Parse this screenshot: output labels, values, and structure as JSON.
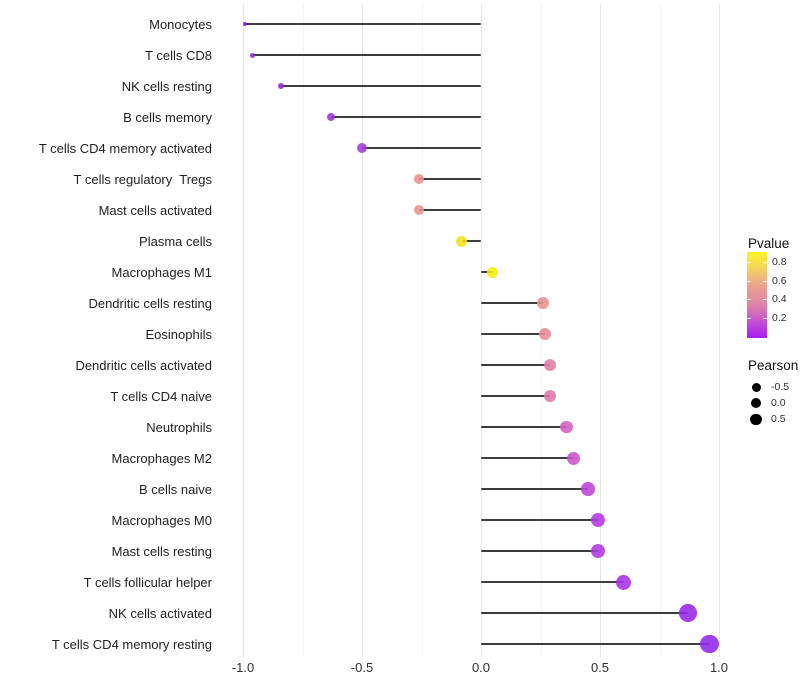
{
  "chart_data": {
    "type": "lollipop",
    "orientation": "horizontal",
    "title": "",
    "xlabel": "",
    "ylabel": "",
    "xlim": [
      -1.1,
      1.08
    ],
    "grid": "vertical major at 0.5 steps, minor at 0.25 steps, no axis lines",
    "x_major_ticks": [
      -1.0,
      -0.5,
      0.0,
      0.5,
      1.0
    ],
    "x_minor_ticks": [
      -0.75,
      -0.25,
      0.25,
      0.75
    ],
    "x_tick_labels": [
      "-1.0",
      "-0.5",
      "0.0",
      "0.5",
      "1.0"
    ],
    "size_encoding": "Pearson correlation",
    "color_encoding": "Pvalue",
    "points": [
      {
        "label": "Monocytes",
        "pearson": -0.99,
        "color": "#8b1fd8",
        "size": 4
      },
      {
        "label": "T cells CD8",
        "pearson": -0.96,
        "color": "#9023dc",
        "size": 5
      },
      {
        "label": "NK cells resting",
        "pearson": -0.84,
        "color": "#9427db",
        "size": 6.5
      },
      {
        "label": "B cells memory",
        "pearson": -0.63,
        "color": "#9d32d8",
        "size": 8.5
      },
      {
        "label": "T cells CD4 memory activated",
        "pearson": -0.5,
        "color": "#a23cd8",
        "size": 10
      },
      {
        "label": "T cells regulatory  Tregs",
        "pearson": -0.26,
        "color": "#e89191",
        "size": 10.5
      },
      {
        "label": "Mast cells activated",
        "pearson": -0.26,
        "color": "#e89191",
        "size": 10.5
      },
      {
        "label": "Plasma cells",
        "pearson": -0.08,
        "color": "#f0e41e",
        "size": 11
      },
      {
        "label": "Macrophages M1",
        "pearson": 0.05,
        "color": "#f5ed07",
        "size": 11
      },
      {
        "label": "Dendritic cells resting",
        "pearson": 0.26,
        "color": "#e8928f",
        "size": 11.5
      },
      {
        "label": "Eosinophils",
        "pearson": 0.27,
        "color": "#e78b97",
        "size": 12
      },
      {
        "label": "Dendritic cells activated",
        "pearson": 0.29,
        "color": "#e07da6",
        "size": 12
      },
      {
        "label": "T cells CD4 naive",
        "pearson": 0.29,
        "color": "#de77ab",
        "size": 12
      },
      {
        "label": "Neutrophils",
        "pearson": 0.36,
        "color": "#d260be",
        "size": 12.5
      },
      {
        "label": "Macrophages M2",
        "pearson": 0.39,
        "color": "#cb53c9",
        "size": 13
      },
      {
        "label": "B cells naive",
        "pearson": 0.45,
        "color": "#bf42d7",
        "size": 13.5
      },
      {
        "label": "Macrophages M0",
        "pearson": 0.49,
        "color": "#b238e0",
        "size": 14
      },
      {
        "label": "Mast cells resting",
        "pearson": 0.49,
        "color": "#b138e0",
        "size": 14
      },
      {
        "label": "T cells follicular helper",
        "pearson": 0.6,
        "color": "#a630e4",
        "size": 15
      },
      {
        "label": "NK cells activated",
        "pearson": 0.87,
        "color": "#9628e8",
        "size": 17.5
      },
      {
        "label": "T cells CD4 memory resting",
        "pearson": 0.96,
        "color": "#9226ea",
        "size": 18.5
      }
    ]
  },
  "legend_pvalue": {
    "title": "Pvalue",
    "tick_labels": [
      "0.8",
      "0.6",
      "0.4",
      "0.2"
    ],
    "gradient_top_to_bottom": [
      "#faf425",
      "#f6dd52",
      "#f0bc79",
      "#e89c93",
      "#e18da1",
      "#d06bbd",
      "#bc44da",
      "#a81ef5"
    ]
  },
  "legend_pearson": {
    "title": "Pearson",
    "dot_color": "#000000",
    "items": [
      {
        "label": "-0.5",
        "size": 9
      },
      {
        "label": "0.0",
        "size": 10.5
      },
      {
        "label": "0.5",
        "size": 11.5
      }
    ]
  },
  "colors": {
    "stem": "#3d3d3d",
    "grid_major": "#e7e7e7",
    "grid_minor": "#f4f4f4",
    "background": "#ffffff"
  }
}
